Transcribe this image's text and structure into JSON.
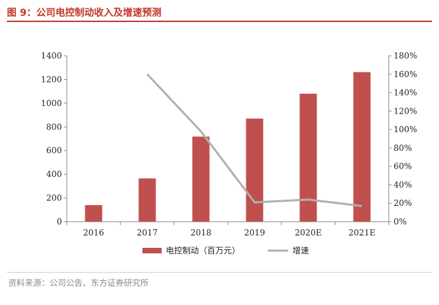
{
  "header": {
    "title": "图 9：公司电控制动收入及增速预测"
  },
  "footer": {
    "source": "资料来源：公司公告、东方证券研究所"
  },
  "chart_data": {
    "type": "bar+line",
    "categories": [
      "2016",
      "2017",
      "2018",
      "2019",
      "2020E",
      "2021E"
    ],
    "series": [
      {
        "name": "电控制动（百万元）",
        "type": "bar",
        "axis": "left",
        "color": "#c0504d",
        "values": [
          140,
          365,
          718,
          870,
          1080,
          1262
        ]
      },
      {
        "name": "增速",
        "type": "line",
        "axis": "right",
        "color": "#b0b0b0",
        "values": [
          null,
          160,
          98,
          21,
          24,
          17
        ]
      }
    ],
    "y_left": {
      "min": 0,
      "max": 1400,
      "step": 200,
      "ticks": [
        "0",
        "200",
        "400",
        "600",
        "800",
        "1000",
        "1200",
        "1400"
      ]
    },
    "y_right": {
      "min": 0,
      "max": 180,
      "step": 20,
      "ticks": [
        "0%",
        "20%",
        "40%",
        "60%",
        "80%",
        "100%",
        "120%",
        "140%",
        "160%",
        "180%"
      ]
    },
    "grid": false,
    "legend_position": "bottom"
  }
}
